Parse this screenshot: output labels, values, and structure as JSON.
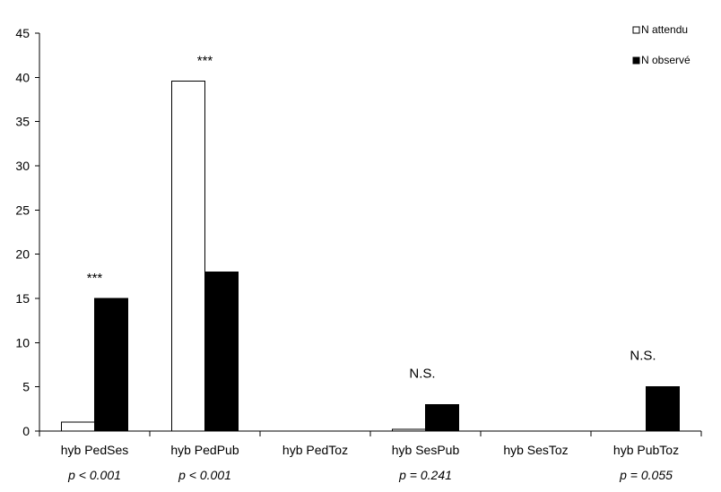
{
  "chart_data": {
    "type": "bar",
    "categories": [
      "hyb PedSes",
      "hyb PedPub",
      "hyb PedToz",
      "hyb SesPub",
      "hyb SesToz",
      "hyb PubToz"
    ],
    "p_values": [
      "p < 0.001",
      "p < 0.001",
      "",
      "p = 0.241",
      "",
      "p = 0.055"
    ],
    "significance": [
      "***",
      "***",
      "",
      "N.S.",
      "",
      "N.S."
    ],
    "series": [
      {
        "name": "N attendu",
        "values": [
          1,
          39.6,
          0,
          0.2,
          0,
          0
        ],
        "color": "#ffffff",
        "stroke": "#000000"
      },
      {
        "name": "N observé",
        "values": [
          15,
          18,
          0,
          3,
          0,
          5
        ],
        "color": "#000000",
        "stroke": "#000000"
      }
    ],
    "ylim": [
      0,
      45
    ],
    "yticks": [
      0,
      5,
      10,
      15,
      20,
      25,
      30,
      35,
      40,
      45
    ],
    "title": "",
    "xlabel": "",
    "ylabel": "",
    "grid": false,
    "legend_position": "top-right"
  }
}
